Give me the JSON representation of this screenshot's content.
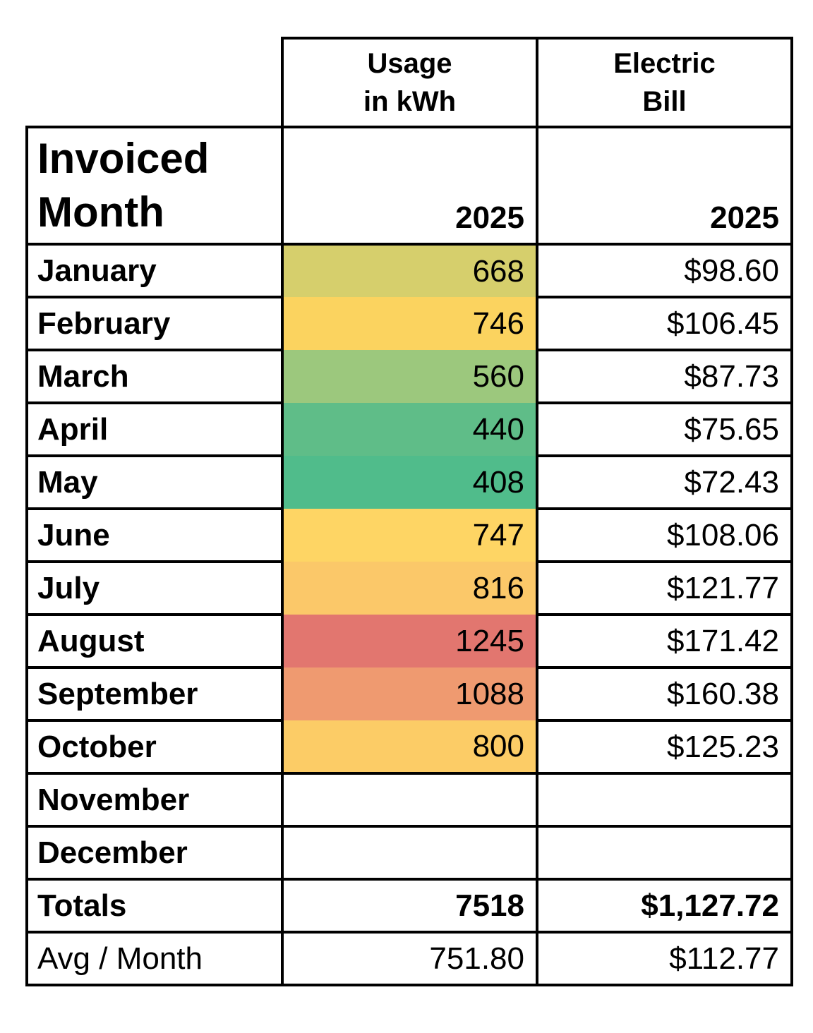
{
  "page": {
    "background": "#ffffff",
    "border_color": "#000000"
  },
  "table": {
    "corner_header": {
      "line1": "Invoiced",
      "line2": "Month"
    },
    "columns": [
      {
        "id": "usage",
        "header_line1": "Usage",
        "header_line2": "in kWh",
        "year": "2025"
      },
      {
        "id": "bill",
        "header_line1": "Electric",
        "header_line2": "Bill",
        "year": "2025"
      }
    ],
    "heatmap_colors": {
      "min_green": "#50bc8b",
      "mid_yellow": "#fed564",
      "max_red": "#e2766f"
    },
    "rows": [
      {
        "label": "January",
        "usage": "668",
        "bill": "$98.60",
        "usage_bg": "#d6cf6c",
        "label_bold": true,
        "value_bold": false
      },
      {
        "label": "February",
        "usage": "746",
        "bill": "$106.45",
        "usage_bg": "#fbd35f",
        "label_bold": true,
        "value_bold": false
      },
      {
        "label": "March",
        "usage": "560",
        "bill": "$87.73",
        "usage_bg": "#9cc87d",
        "label_bold": true,
        "value_bold": false
      },
      {
        "label": "April",
        "usage": "440",
        "bill": "$75.65",
        "usage_bg": "#5fbd88",
        "label_bold": true,
        "value_bold": false
      },
      {
        "label": "May",
        "usage": "408",
        "bill": "$72.43",
        "usage_bg": "#50bc8b",
        "label_bold": true,
        "value_bold": false
      },
      {
        "label": "June",
        "usage": "747",
        "bill": "$108.06",
        "usage_bg": "#fed564",
        "label_bold": true,
        "value_bold": false
      },
      {
        "label": "July",
        "usage": "816",
        "bill": "$121.77",
        "usage_bg": "#fbc869",
        "label_bold": true,
        "value_bold": false
      },
      {
        "label": "August",
        "usage": "1245",
        "bill": "$171.42",
        "usage_bg": "#e2766f",
        "label_bold": true,
        "value_bold": false
      },
      {
        "label": "September",
        "usage": "1088",
        "bill": "$160.38",
        "usage_bg": "#ef9a70",
        "label_bold": true,
        "value_bold": false
      },
      {
        "label": "October",
        "usage": "800",
        "bill": "$125.23",
        "usage_bg": "#fccc66",
        "label_bold": true,
        "value_bold": false
      },
      {
        "label": "November",
        "usage": "",
        "bill": "",
        "usage_bg": "",
        "label_bold": true,
        "value_bold": false
      },
      {
        "label": "December",
        "usage": "",
        "bill": "",
        "usage_bg": "",
        "label_bold": true,
        "value_bold": false
      },
      {
        "label": "Totals",
        "usage": "7518",
        "bill": "$1,127.72",
        "usage_bg": "",
        "label_bold": true,
        "value_bold": true
      },
      {
        "label": "Avg / Month",
        "usage": "751.80",
        "bill": "$112.77",
        "usage_bg": "",
        "label_bold": false,
        "value_bold": false
      }
    ]
  }
}
